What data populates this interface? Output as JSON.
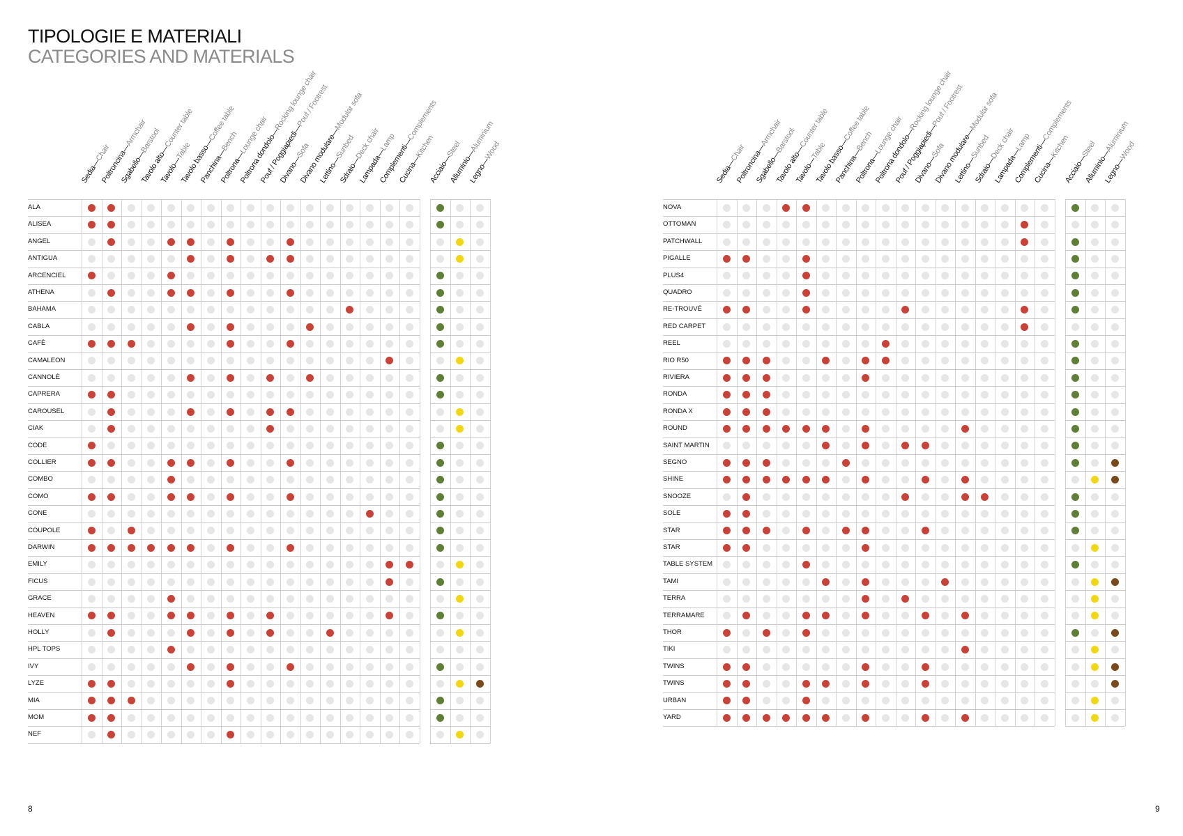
{
  "title": {
    "italian": "TIPOLOGIE E MATERIALI",
    "english": "CATEGORIES AND MATERIALS"
  },
  "column_groups": {
    "categories": [
      {
        "it": "Sedia",
        "en": "Chair"
      },
      {
        "it": "Poltroncina",
        "en": "Armchair"
      },
      {
        "it": "Sgabello",
        "en": "Barstool"
      },
      {
        "it": "Tavolo alto",
        "en": "Counter table"
      },
      {
        "it": "Tavolo",
        "en": "Table"
      },
      {
        "it": "Tavolo basso",
        "en": "Coffee table"
      },
      {
        "it": "Panchina",
        "en": "Bench"
      },
      {
        "it": "Poltrona",
        "en": "Lounge chair"
      },
      {
        "it": "Poltrona dondolo",
        "en": "Rocking lounge chair"
      },
      {
        "it": "Pouf / Poggiapiedi",
        "en": "Pouf / Footrest"
      },
      {
        "it": "Divano",
        "en": "Sofa"
      },
      {
        "it": "Divano modulare",
        "en": "Modular sofa"
      },
      {
        "it": "Lettino",
        "en": "Sunbed"
      },
      {
        "it": "Sdraio",
        "en": "Deck chair"
      },
      {
        "it": "Lampada",
        "en": "Lamp"
      },
      {
        "it": "Complementi",
        "en": "Complements"
      },
      {
        "it": "Cucina",
        "en": "Kitchen"
      }
    ],
    "materials": [
      {
        "it": "Acciaio",
        "en": "Steel",
        "color": "#5e7f35"
      },
      {
        "it": "Alluminio",
        "en": "Aluminium",
        "color": "#f2d614"
      },
      {
        "it": "Legno",
        "en": "Wood",
        "color": "#7a4a1c"
      }
    ]
  },
  "colors": {
    "category_active": "#c94238",
    "inactive": "#e6e6e6"
  },
  "pages": [
    {
      "page_number": "8",
      "rows": [
        {
          "name": "ALA",
          "c": [
            1,
            2
          ],
          "m": [
            1
          ]
        },
        {
          "name": "ALISEA",
          "c": [
            1,
            2
          ],
          "m": [
            1
          ]
        },
        {
          "name": "ANGEL",
          "c": [
            2,
            5,
            6,
            8,
            11
          ],
          "m": [
            2
          ]
        },
        {
          "name": "ANTIGUA",
          "c": [
            6,
            8,
            10,
            11
          ],
          "m": [
            2
          ]
        },
        {
          "name": "ARCENCIEL",
          "c": [
            1,
            5
          ],
          "m": [
            1
          ]
        },
        {
          "name": "ATHENA",
          "c": [
            2,
            5,
            6,
            8,
            11
          ],
          "m": [
            1
          ]
        },
        {
          "name": "BAHAMA",
          "c": [
            14
          ],
          "m": [
            1
          ]
        },
        {
          "name": "CABLA",
          "c": [
            6,
            8,
            12
          ],
          "m": [
            1
          ]
        },
        {
          "name": "CAFÈ",
          "c": [
            1,
            2,
            3,
            8,
            11
          ],
          "m": [
            1
          ]
        },
        {
          "name": "CAMALEON",
          "c": [
            16
          ],
          "m": [
            2
          ]
        },
        {
          "name": "CANNOLÈ",
          "c": [
            6,
            8,
            10,
            12
          ],
          "m": [
            1
          ]
        },
        {
          "name": "CAPRERA",
          "c": [
            1,
            2
          ],
          "m": [
            1
          ]
        },
        {
          "name": "CAROUSEL",
          "c": [
            2,
            6,
            8,
            10,
            11
          ],
          "m": [
            2
          ]
        },
        {
          "name": "CIAK",
          "c": [
            2,
            10
          ],
          "m": [
            2
          ]
        },
        {
          "name": "CODE",
          "c": [
            1
          ],
          "m": [
            1
          ]
        },
        {
          "name": "COLLIER",
          "c": [
            1,
            2,
            5,
            6,
            8,
            11
          ],
          "m": [
            1
          ]
        },
        {
          "name": "COMBO",
          "c": [
            5
          ],
          "m": [
            1
          ]
        },
        {
          "name": "COMO",
          "c": [
            1,
            2,
            5,
            6,
            8,
            11
          ],
          "m": [
            1
          ]
        },
        {
          "name": "CONE",
          "c": [
            15
          ],
          "m": [
            1
          ]
        },
        {
          "name": "COUPOLE",
          "c": [
            1,
            3
          ],
          "m": [
            1
          ]
        },
        {
          "name": "DARWIN",
          "c": [
            1,
            2,
            3,
            4,
            5,
            6,
            8,
            11
          ],
          "m": [
            1
          ]
        },
        {
          "name": "EMILY",
          "c": [
            16,
            17
          ],
          "m": [
            2
          ]
        },
        {
          "name": "FICUS",
          "c": [
            16
          ],
          "m": [
            1
          ]
        },
        {
          "name": "GRACE",
          "c": [
            5
          ],
          "m": [
            2
          ]
        },
        {
          "name": "HEAVEN",
          "c": [
            1,
            2,
            5,
            6,
            8,
            10,
            16
          ],
          "m": [
            1
          ]
        },
        {
          "name": "HOLLY",
          "c": [
            2,
            6,
            8,
            10,
            13
          ],
          "m": [
            2
          ]
        },
        {
          "name": "HPL TOPS",
          "c": [
            5
          ],
          "m": []
        },
        {
          "name": "IVY",
          "c": [
            6,
            8,
            11
          ],
          "m": [
            1
          ]
        },
        {
          "name": "LYZE",
          "c": [
            1,
            2,
            8
          ],
          "m": [
            2,
            3
          ]
        },
        {
          "name": "MIA",
          "c": [
            1,
            2,
            3
          ],
          "m": [
            1
          ]
        },
        {
          "name": "MOM",
          "c": [
            1,
            2
          ],
          "m": [
            1
          ]
        },
        {
          "name": "NEF",
          "c": [
            2,
            8
          ],
          "m": [
            2
          ]
        }
      ]
    },
    {
      "page_number": "9",
      "rows": [
        {
          "name": "NOVA",
          "c": [
            4,
            5
          ],
          "m": [
            1
          ]
        },
        {
          "name": "OTTOMAN",
          "c": [
            16
          ],
          "m": []
        },
        {
          "name": "PATCHWALL",
          "c": [
            16
          ],
          "m": [
            1
          ]
        },
        {
          "name": "PIGALLE",
          "c": [
            1,
            2,
            5
          ],
          "m": [
            1
          ]
        },
        {
          "name": "PLUS4",
          "c": [
            5
          ],
          "m": [
            1
          ]
        },
        {
          "name": "QUADRO",
          "c": [
            5
          ],
          "m": [
            1
          ]
        },
        {
          "name": "RE-TROUVÉ",
          "c": [
            1,
            2,
            5,
            10,
            16
          ],
          "m": [
            1
          ]
        },
        {
          "name": "RED CARPET",
          "c": [
            16
          ],
          "m": []
        },
        {
          "name": "REEL",
          "c": [
            9
          ],
          "m": [
            1
          ]
        },
        {
          "name": "RIO R50",
          "c": [
            1,
            2,
            3,
            6,
            8,
            9
          ],
          "m": [
            1
          ]
        },
        {
          "name": "RIVIERA",
          "c": [
            1,
            2,
            3,
            8
          ],
          "m": [
            1
          ]
        },
        {
          "name": "RONDA",
          "c": [
            1,
            2,
            3
          ],
          "m": [
            1
          ]
        },
        {
          "name": "RONDA X",
          "c": [
            1,
            2,
            3
          ],
          "m": [
            1
          ]
        },
        {
          "name": "ROUND",
          "c": [
            1,
            2,
            3,
            4,
            5,
            6,
            8,
            13
          ],
          "m": [
            1
          ]
        },
        {
          "name": "SAINT MARTIN",
          "c": [
            6,
            8,
            10,
            11
          ],
          "m": [
            1
          ]
        },
        {
          "name": "SEGNO",
          "c": [
            1,
            2,
            3,
            7
          ],
          "m": [
            1,
            3
          ]
        },
        {
          "name": "SHINE",
          "c": [
            1,
            2,
            3,
            4,
            5,
            6,
            8,
            11,
            13
          ],
          "m": [
            2,
            3
          ]
        },
        {
          "name": "SNOOZE",
          "c": [
            2,
            10,
            13,
            14
          ],
          "m": [
            1
          ]
        },
        {
          "name": "SOLE",
          "c": [
            1,
            2
          ],
          "m": [
            1
          ]
        },
        {
          "name": "STAR",
          "c": [
            1,
            2,
            3,
            5,
            7,
            8,
            11
          ],
          "m": [
            1
          ]
        },
        {
          "name": "STAR",
          "c": [
            1,
            2,
            8
          ],
          "m": [
            2
          ]
        },
        {
          "name": "TABLE SYSTEM",
          "c": [
            5
          ],
          "m": [
            1
          ]
        },
        {
          "name": "TAMI",
          "c": [
            6,
            8,
            12
          ],
          "m": [
            2,
            3
          ]
        },
        {
          "name": "TERRA",
          "c": [
            8,
            10
          ],
          "m": [
            2
          ]
        },
        {
          "name": "TERRAMARE",
          "c": [
            2,
            5,
            6,
            8,
            11,
            13
          ],
          "m": [
            2
          ]
        },
        {
          "name": "THOR",
          "c": [
            1,
            3,
            5
          ],
          "m": [
            1,
            3
          ]
        },
        {
          "name": "TIKI",
          "c": [
            13
          ],
          "m": [
            2
          ]
        },
        {
          "name": "TWINS",
          "c": [
            1,
            2,
            8,
            11
          ],
          "m": [
            2,
            3
          ]
        },
        {
          "name": "TWINS",
          "c": [
            1,
            2,
            5,
            6,
            8,
            11
          ],
          "m": [
            3
          ]
        },
        {
          "name": "URBAN",
          "c": [
            1,
            2,
            5
          ],
          "m": [
            2
          ]
        },
        {
          "name": "YARD",
          "c": [
            1,
            2,
            3,
            4,
            5,
            6,
            8,
            11,
            13
          ],
          "m": [
            2
          ]
        }
      ]
    }
  ]
}
